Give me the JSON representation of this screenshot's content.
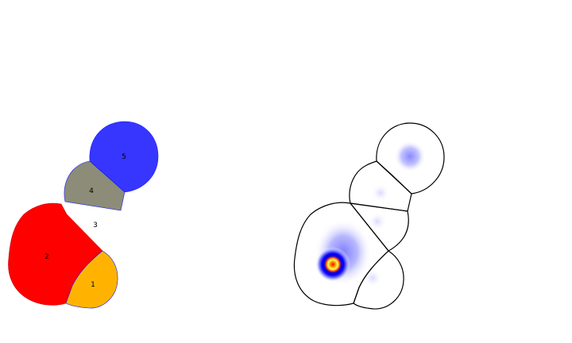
{
  "left_panel": {
    "regions": [
      {
        "id": "1",
        "label": "1",
        "color": "#ffb300"
      },
      {
        "id": "2",
        "label": "2",
        "color": "#ff0000"
      },
      {
        "id": "3",
        "label": "3",
        "color": "#ffffff"
      },
      {
        "id": "4",
        "label": "4",
        "color": "#8c8c78"
      },
      {
        "id": "5",
        "label": "5",
        "color": "#3636ff"
      }
    ],
    "border_color": "#1a1aff"
  },
  "right_panel": {
    "outline_color": "#000000",
    "heatmap_colors": [
      "#ffffff",
      "#a8a8ff",
      "#0000ff",
      "#ff0000",
      "#ffff00"
    ]
  }
}
